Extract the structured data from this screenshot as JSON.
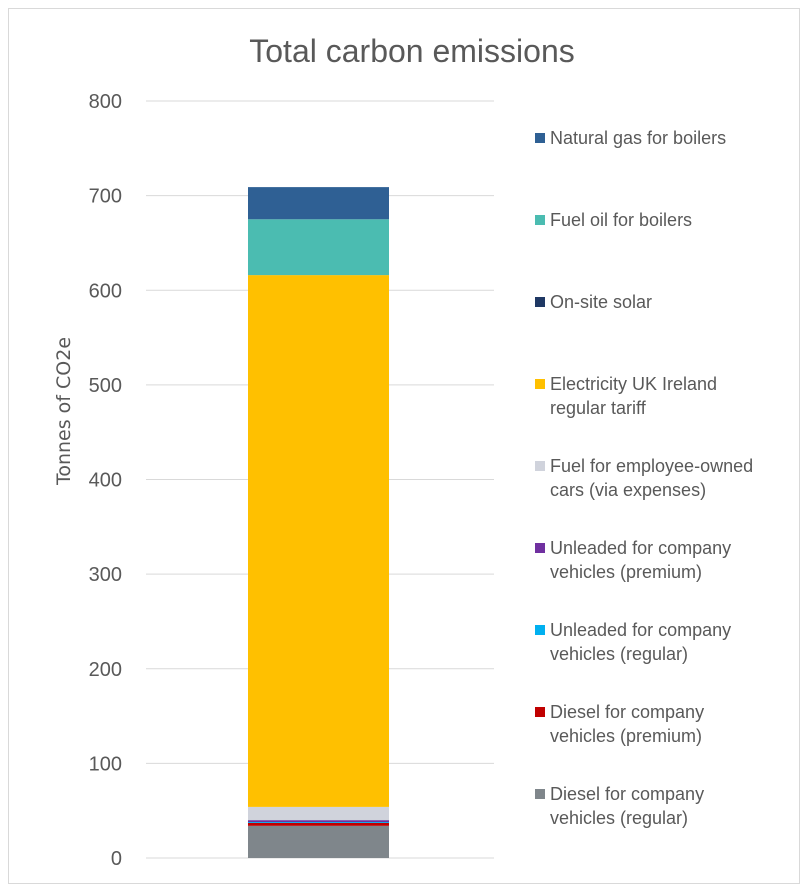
{
  "chart_data": {
    "type": "bar",
    "stacked": true,
    "title": "Total carbon emissions",
    "ylabel": "Tonnes of CO2e",
    "xlabel": "",
    "ylim": [
      0,
      800
    ],
    "yticks": [
      0,
      100,
      200,
      300,
      400,
      500,
      600,
      700,
      800
    ],
    "grid": true,
    "legend_position": "right",
    "series": [
      {
        "name": "Diesel for company vehicles (regular)",
        "value": 34,
        "color": "#7f868b"
      },
      {
        "name": "Diesel for company vehicles (premium)",
        "value": 3,
        "color": "#c00000"
      },
      {
        "name": "Unleaded for company vehicles (regular)",
        "value": 1,
        "color": "#00b0f0"
      },
      {
        "name": "Unleaded for company vehicles (premium)",
        "value": 2,
        "color": "#7030a0"
      },
      {
        "name": "Fuel for employee-owned cars (via expenses)",
        "value": 14,
        "color": "#d0d3dc"
      },
      {
        "name": "Electricity UK Ireland regular tariff",
        "value": 562,
        "color": "#ffc000"
      },
      {
        "name": "On-site solar",
        "value": 0,
        "color": "#1f3864"
      },
      {
        "name": "Fuel oil for boilers",
        "value": 59,
        "color": "#4bbcb1"
      },
      {
        "name": "Natural gas for boilers",
        "value": 34,
        "color": "#2f6094"
      }
    ],
    "legend_order": [
      {
        "line1": "Natural gas for boilers",
        "line2": ""
      },
      {
        "line1": "Fuel oil for boilers",
        "line2": ""
      },
      {
        "line1": "On-site solar",
        "line2": ""
      },
      {
        "line1": "Electricity UK Ireland",
        "line2": "regular tariff"
      },
      {
        "line1": "Fuel for employee-owned",
        "line2": "cars (via expenses)"
      },
      {
        "line1": "Unleaded for company",
        "line2": "vehicles (premium)"
      },
      {
        "line1": "Unleaded for company",
        "line2": "vehicles (regular)"
      },
      {
        "line1": "Diesel for company",
        "line2": "vehicles (premium)"
      },
      {
        "line1": "Diesel for company",
        "line2": "vehicles (regular)"
      }
    ]
  }
}
